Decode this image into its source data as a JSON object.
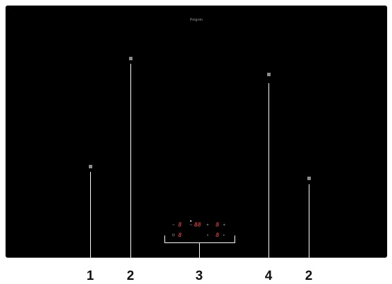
{
  "brand": "Pelgrim",
  "callouts": [
    "1",
    "2",
    "3",
    "4",
    "2"
  ],
  "display": {
    "digit": "8",
    "timer_digits": "88"
  }
}
